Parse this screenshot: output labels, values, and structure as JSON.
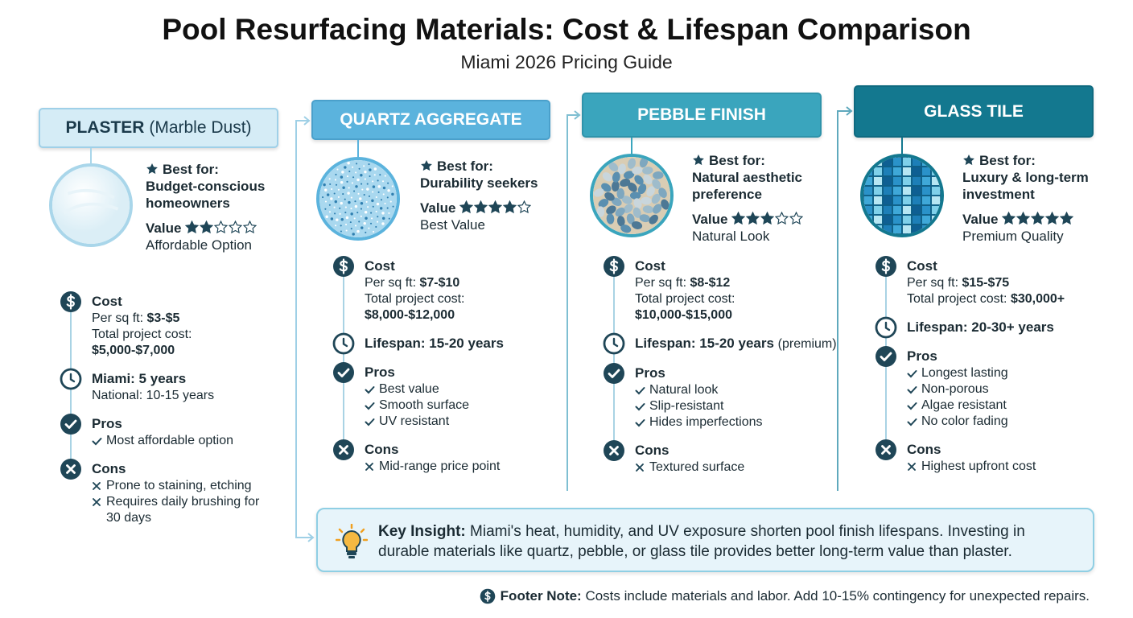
{
  "header": {
    "title": "Pool Resurfacing Materials: Cost & Lifespan Comparison",
    "subtitle": "Miami 2026 Pricing Guide"
  },
  "materials": [
    {
      "name": "PLASTER",
      "name_note": "(Marble Dust)",
      "best_for_label": "Best for:",
      "best_for": "Budget-conscious homeowners",
      "value_label": "Value",
      "rating": 2,
      "rating_max": 5,
      "value_note": "Affordable Option",
      "cost": {
        "label": "Cost",
        "per_sqft_label": "Per sq ft:",
        "per_sqft": "$3-$5",
        "total_label": "Total project cost:",
        "total": "$5,000-$7,000"
      },
      "lifespan": {
        "text": "Miami: 5 years",
        "note": "National: 10-15 years"
      },
      "pros": {
        "label": "Pros",
        "items": [
          "Most affordable option"
        ]
      },
      "cons": {
        "label": "Cons",
        "items": [
          "Prone to staining, etching",
          "Requires daily brushing for 30 days"
        ]
      }
    },
    {
      "name": "QUARTZ AGGREGATE",
      "best_for_label": "Best for:",
      "best_for": "Durability seekers",
      "value_label": "Value",
      "rating": 4,
      "rating_max": 5,
      "value_note": "Best Value",
      "cost": {
        "label": "Cost",
        "per_sqft_label": "Per sq ft:",
        "per_sqft": "$7-$10",
        "total_label": "Total project cost:",
        "total": "$8,000-$12,000"
      },
      "lifespan": {
        "text": "Lifespan: 15-20 years"
      },
      "pros": {
        "label": "Pros",
        "items": [
          "Best value",
          "Smooth surface",
          "UV resistant"
        ]
      },
      "cons": {
        "label": "Cons",
        "items": [
          "Mid-range price point"
        ]
      }
    },
    {
      "name": "PEBBLE FINISH",
      "best_for_label": "Best for:",
      "best_for": "Natural aesthetic preference",
      "value_label": "Value",
      "rating": 3,
      "rating_max": 5,
      "value_note": "Natural Look",
      "cost": {
        "label": "Cost",
        "per_sqft_label": "Per sq ft:",
        "per_sqft": "$8-$12",
        "total_label": "Total project cost:",
        "total": "$10,000-$15,000"
      },
      "lifespan": {
        "text": "Lifespan: 15-20 years",
        "note_inline": "(premium)"
      },
      "pros": {
        "label": "Pros",
        "items": [
          "Natural look",
          "Slip-resistant",
          "Hides imperfections"
        ]
      },
      "cons": {
        "label": "Cons",
        "items": [
          "Textured surface"
        ]
      }
    },
    {
      "name": "GLASS TILE",
      "best_for_label": "Best for:",
      "best_for": "Luxury & long-term investment",
      "value_label": "Value",
      "rating": 5,
      "rating_max": 5,
      "value_note": "Premium Quality",
      "cost": {
        "label": "Cost",
        "per_sqft_label": "Per sq ft:",
        "per_sqft": "$15-$75",
        "total_label": "Total project cost:",
        "total": "$30,000+"
      },
      "lifespan": {
        "text": "Lifespan: 20-30+ years"
      },
      "pros": {
        "label": "Pros",
        "items": [
          "Longest lasting",
          "Non-porous",
          "Algae resistant",
          "No color fading"
        ]
      },
      "cons": {
        "label": "Cons",
        "items": [
          "Highest upfront cost"
        ]
      }
    }
  ],
  "insight": {
    "label": "Key Insight:",
    "text": "Miami's heat, humidity, and UV exposure shorten pool finish lifespans. Investing in durable materials like quartz, pebble, or glass tile provides better long-term value than plaster."
  },
  "footer": {
    "label": "Footer Note:",
    "text": "Costs include materials and labor. Add 10-15% contingency for unexpected repairs."
  }
}
